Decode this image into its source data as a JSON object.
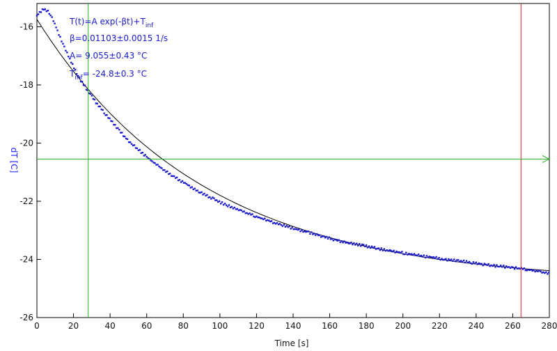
{
  "chart_data": {
    "type": "scatter",
    "xlabel": "Time [s]",
    "ylabel": "dT [C]",
    "xlim": [
      0,
      280
    ],
    "ylim": [
      -26,
      -15.2
    ],
    "x_ticks": [
      0,
      20,
      40,
      60,
      80,
      100,
      120,
      140,
      160,
      180,
      200,
      220,
      240,
      260,
      280
    ],
    "y_ticks": [
      -26,
      -24,
      -22,
      -20,
      -18,
      -16
    ],
    "grid": false,
    "annotations": {
      "formula": "T(t)=A exp(-βt)+T",
      "formula_sub": "inf",
      "beta": "β=0.01103±0.0015 1/s",
      "amp": "A= 9.055±0.43 °C",
      "tinf_prefix": "T",
      "tinf_sub": "inf",
      "tinf_value": "= -24.8±0.3 °C"
    },
    "markers": {
      "green_vertical_x": 28,
      "red_vertical_x": 264.5,
      "green_horizontal_y": -20.55
    },
    "fit": {
      "A": 9.055,
      "beta": 0.01103,
      "T_inf": -24.8
    },
    "series": [
      {
        "style": "points",
        "color": "#1a1acc",
        "x": [
          0,
          1,
          2,
          3,
          4,
          5,
          6,
          7,
          8,
          9,
          10,
          12,
          14,
          16,
          18,
          20,
          22,
          24,
          26,
          28,
          30,
          32,
          34,
          36,
          38,
          40,
          45,
          50,
          55,
          60,
          65,
          70,
          75,
          80,
          90,
          100,
          110,
          120,
          130,
          140,
          150,
          160,
          170,
          180,
          190,
          200,
          210,
          220,
          230,
          240,
          250,
          260,
          270,
          280
        ],
        "y": [
          -15.62,
          -15.55,
          -15.48,
          -15.42,
          -15.4,
          -15.42,
          -15.47,
          -15.55,
          -15.66,
          -15.79,
          -15.94,
          -16.25,
          -16.55,
          -16.84,
          -17.12,
          -17.38,
          -17.62,
          -17.85,
          -18.03,
          -18.22,
          -18.41,
          -18.58,
          -18.74,
          -18.9,
          -19.05,
          -19.2,
          -19.57,
          -19.92,
          -20.2,
          -20.48,
          -20.72,
          -20.95,
          -21.16,
          -21.35,
          -21.72,
          -22.03,
          -22.3,
          -22.53,
          -22.75,
          -22.93,
          -23.1,
          -23.28,
          -23.43,
          -23.55,
          -23.67,
          -23.78,
          -23.88,
          -23.97,
          -24.05,
          -24.13,
          -24.22,
          -24.28,
          -24.37,
          -24.48
        ]
      }
    ]
  }
}
